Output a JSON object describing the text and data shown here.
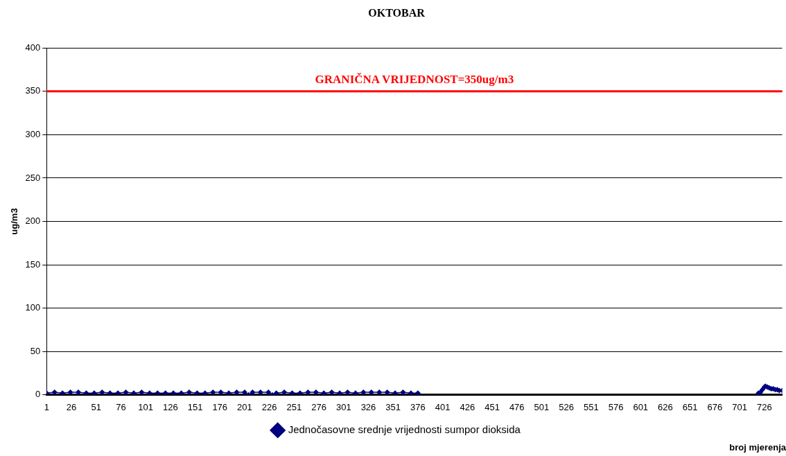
{
  "chart_data": {
    "type": "line",
    "title": "OKTOBAR",
    "xlabel": "broj mjerenja",
    "ylabel": "ug/m3",
    "xlim": [
      1,
      744
    ],
    "xticks": [
      1,
      26,
      51,
      76,
      101,
      126,
      151,
      176,
      201,
      226,
      251,
      276,
      301,
      326,
      351,
      376,
      401,
      426,
      451,
      476,
      501,
      526,
      551,
      576,
      601,
      626,
      651,
      676,
      701,
      726
    ],
    "ylim": [
      0,
      400
    ],
    "yticks": [
      0,
      50,
      100,
      150,
      200,
      250,
      300,
      350,
      400
    ],
    "grid": "y",
    "legend": "bottom",
    "marker": "diamond",
    "line_style": "solid",
    "ref_lines": [
      {
        "axis": "y",
        "value": 350,
        "label": "GRANIČNA VRIJEDNOST=350ug/m3",
        "color": "#ff0000"
      }
    ],
    "series": [
      {
        "name": "Jednočasovne srednje vrijednosti sumpor dioksida",
        "color": "#000080",
        "x": [
          1,
          9,
          17,
          25,
          33,
          41,
          49,
          57,
          65,
          73,
          81,
          89,
          97,
          105,
          113,
          121,
          129,
          137,
          145,
          153,
          161,
          169,
          177,
          185,
          193,
          201,
          205,
          209,
          217,
          225,
          229,
          233,
          241,
          249,
          257,
          265,
          273,
          281,
          289,
          297,
          305,
          313,
          321,
          329,
          337,
          345,
          353,
          361,
          369,
          376,
          548,
          720,
          722,
          724,
          726,
          727,
          729,
          731,
          733,
          735,
          737,
          739,
          741,
          744
        ],
        "values": [
          2,
          3,
          2,
          3,
          3,
          2,
          2,
          3,
          2,
          2,
          3,
          2,
          3,
          2,
          2,
          2,
          2,
          2,
          3,
          2,
          2,
          3,
          3,
          2,
          3,
          3,
          0,
          3,
          3,
          3,
          0,
          2,
          3,
          2,
          2,
          3,
          3,
          2,
          3,
          2,
          3,
          2,
          3,
          3,
          3,
          3,
          2,
          3,
          2,
          2,
          null,
          2,
          3,
          6,
          9,
          10,
          9,
          8,
          7,
          7,
          6,
          6,
          5,
          5
        ]
      }
    ]
  }
}
